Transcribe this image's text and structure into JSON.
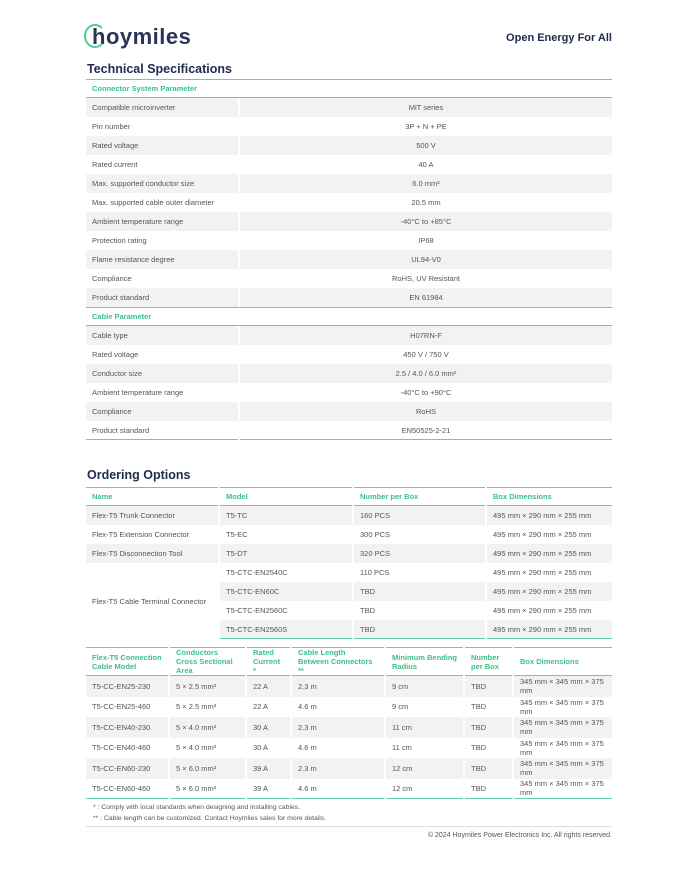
{
  "header": {
    "logo_text": "hoymiles",
    "tagline": "Open Energy For All"
  },
  "tech": {
    "title": "Technical Specifications",
    "sections": [
      {
        "name": "Connector System Parameter",
        "rows": [
          [
            "Compatible microinverter",
            "MiT series"
          ],
          [
            "Pin number",
            "3P + N + PE"
          ],
          [
            "Rated voltage",
            "500 V"
          ],
          [
            "Rated current",
            "40 A"
          ],
          [
            "Max. supported conductor size",
            "6.0 mm²"
          ],
          [
            "Max. supported cable outer diameter",
            "20.5 mm"
          ],
          [
            "Ambient temperature range",
            "-40°C to +85°C"
          ],
          [
            "Protection rating",
            "IP68"
          ],
          [
            "Flame resistance degree",
            "UL94-V0"
          ],
          [
            "Compliance",
            "RoHS, UV Resistant"
          ],
          [
            "Product standard",
            "EN 61984"
          ]
        ]
      },
      {
        "name": "Cable Parameter",
        "rows": [
          [
            "Cable type",
            "H07RN-F"
          ],
          [
            "Rated voltage",
            "450 V / 750 V"
          ],
          [
            "Conductor size",
            "2.5 / 4.0 / 6.0 mm²"
          ],
          [
            "Ambient temperature range",
            "-40°C to +90°C"
          ],
          [
            "Compliance",
            "RoHS"
          ],
          [
            "Product standard",
            "EN50525-2-21"
          ]
        ]
      }
    ]
  },
  "ordering": {
    "title": "Ordering Options",
    "headers": [
      "Name",
      "Model",
      "Number per Box",
      "Box Dimensions"
    ],
    "rows": [
      {
        "name": "Flex-T5 Trunk Connector",
        "items": [
          [
            "T5-TC",
            "160 PCS",
            "495 mm × 290 mm × 255 mm"
          ]
        ]
      },
      {
        "name": "Flex-T5 Extension Connector",
        "items": [
          [
            "T5-EC",
            "300 PCS",
            "495 mm × 290 mm × 255 mm"
          ]
        ]
      },
      {
        "name": "Flex-T5 Disconnection Tool",
        "items": [
          [
            "T5-DT",
            "320 PCS",
            "495 mm × 290 mm × 255 mm"
          ]
        ]
      },
      {
        "name": "Flex-T5 Cable Terminal Connector",
        "items": [
          [
            "T5-CTC-EN2540C",
            "110 PCS",
            "495 mm × 290 mm × 255 mm"
          ],
          [
            "T5-CTC-EN60C",
            "TBD",
            "495 mm × 290 mm × 255 mm"
          ],
          [
            "T5-CTC-EN2560C",
            "TBD",
            "495 mm × 290 mm × 255 mm"
          ],
          [
            "T5-CTC-EN2560S",
            "TBD",
            "495 mm × 290 mm × 255 mm"
          ]
        ]
      }
    ]
  },
  "cable": {
    "headers": [
      "Flex-T5 Connection Cable Model",
      "Conductors Cross Sectional Area",
      "Rated Current *",
      "Cable Length Between Connectors **",
      "Minimum Bending Radius",
      "Number per Box",
      "Box Dimensions"
    ],
    "rows": [
      [
        "T5-CC-EN25-230",
        "5 × 2.5 mm²",
        "22 A",
        "2.3 m",
        "9 cm",
        "TBD",
        "345 mm × 345 mm × 375 mm"
      ],
      [
        "T5-CC-EN25-460",
        "5 × 2.5 mm²",
        "22 A",
        "4.6 m",
        "9 cm",
        "TBD",
        "345 mm × 345 mm × 375 mm"
      ],
      [
        "T5-CC-EN40-230",
        "5 × 4.0 mm²",
        "30 A",
        "2.3 m",
        "11 cm",
        "TBD",
        "345 mm × 345 mm × 375 mm"
      ],
      [
        "T5-CC-EN40-460",
        "5 × 4.0 mm²",
        "30 A",
        "4.6 m",
        "11 cm",
        "TBD",
        "345 mm × 345 mm × 375 mm"
      ],
      [
        "T5-CC-EN60-230",
        "5 × 6.0 mm²",
        "39 A",
        "2.3 m",
        "12 cm",
        "TBD",
        "345 mm × 345 mm × 375 mm"
      ],
      [
        "T5-CC-EN60-460",
        "5 × 6.0 mm²",
        "39 A",
        "4.6 m",
        "12 cm",
        "TBD",
        "345 mm × 345 mm × 375 mm"
      ]
    ]
  },
  "notes": [
    "*   : Comply with local standards when designing and installing cables.",
    "** : Cable length can be customized. Contact Hoymiles sales for more details."
  ],
  "footer": {
    "copyright": "© 2024 Hoymiles Power Electronics Inc. All rights reserved."
  },
  "colors": {
    "accent": "#3cbf88",
    "navy": "#1f2a4d",
    "row_shade": "#f2f2f2"
  }
}
